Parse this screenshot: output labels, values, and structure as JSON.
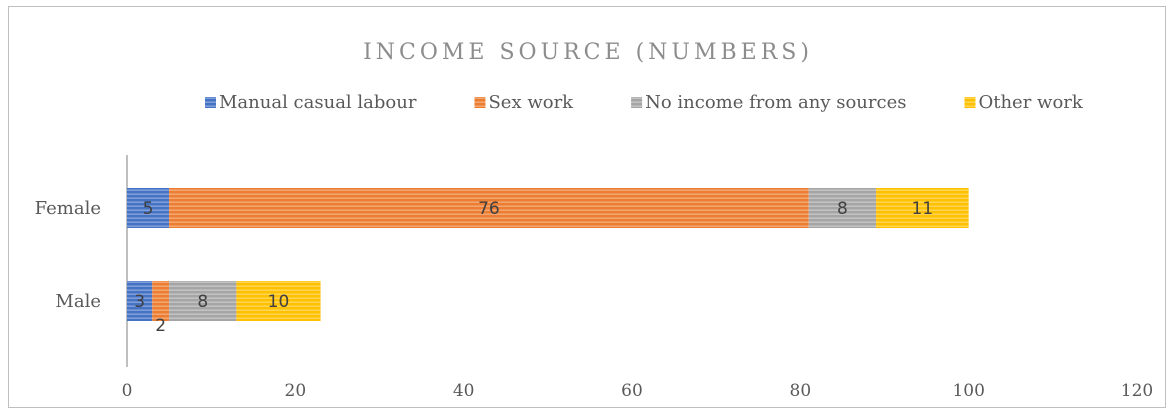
{
  "chart_data": {
    "type": "bar",
    "orientation": "horizontal",
    "stacked": true,
    "title": "INCOME SOURCE (NUMBERS)",
    "categories": [
      "Female",
      "Male"
    ],
    "series": [
      {
        "name": "Manual casual labour",
        "values": [
          5,
          3
        ],
        "color": "#4472c4"
      },
      {
        "name": "Sex work",
        "values": [
          76,
          2
        ],
        "color": "#ed7d31"
      },
      {
        "name": "No income from any sources",
        "values": [
          8,
          8
        ],
        "color": "#a5a5a5"
      },
      {
        "name": "Other work",
        "values": [
          11,
          10
        ],
        "color": "#ffc000"
      }
    ],
    "xlim": [
      0,
      120
    ],
    "xticks": [
      0,
      20,
      40,
      60,
      80,
      100,
      120
    ],
    "legend": "top",
    "grid": false,
    "pattern": "horizontal-stripes"
  }
}
